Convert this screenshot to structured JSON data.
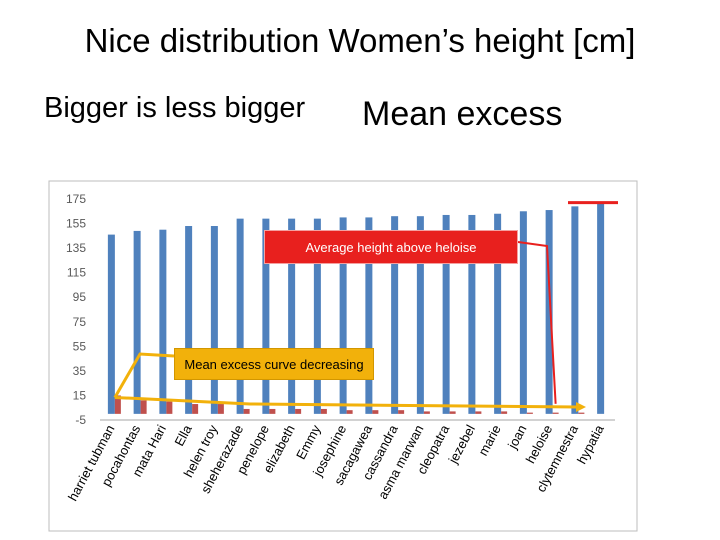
{
  "slide": {
    "title": "Nice distribution Women’s height [cm]",
    "subtitle_left": "Bigger is less bigger",
    "subtitle_right": "Mean excess"
  },
  "chart_data": {
    "type": "bar",
    "categories": [
      "harriet tubman",
      "pocahontas",
      "mata Hari",
      "Ella",
      "helen troy",
      "sheherazade",
      "penelope",
      "elizabeth",
      "Emmy",
      "josephine",
      "sacagawea",
      "cassandra",
      "asma marwan",
      "cleopatra",
      "jezebel",
      "marie",
      "joan",
      "heloise",
      "clytemnestra",
      "hypatia"
    ],
    "series": [
      {
        "name": "height",
        "color": "#4f81bd",
        "values": [
          146,
          149,
          150,
          153,
          153,
          159,
          159,
          159,
          159,
          160,
          160,
          161,
          161,
          162,
          162,
          163,
          165,
          166,
          169,
          172
        ]
      },
      {
        "name": "mean excess",
        "color": "#c0504d",
        "values": [
          15,
          11,
          10,
          8,
          8,
          4,
          4,
          4,
          4,
          3,
          3,
          3,
          2,
          2,
          2,
          2,
          1,
          1,
          1,
          0
        ]
      }
    ],
    "yticks": [
      175,
      155,
      135,
      115,
      95,
      75,
      55,
      35,
      15,
      -5
    ],
    "ylim": [
      -5,
      175
    ],
    "xlabel": "",
    "ylabel": "",
    "title": "",
    "annotations": [
      {
        "id": "average",
        "text": "Average  height above heloise",
        "color": "#e8201e"
      },
      {
        "id": "mean-excess",
        "text": "Mean excess curve decreasing",
        "color": "#f2b10b"
      }
    ]
  }
}
